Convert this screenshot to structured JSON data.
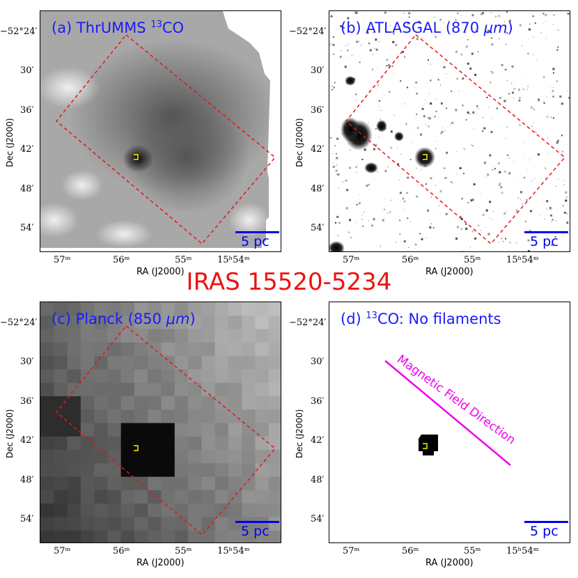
{
  "figure_title": "IRAS 15520-5234",
  "panels": [
    {
      "title": "(a) ThrUMMS",
      "title_sup": "13",
      "title_suffix": "CO",
      "scalebar": "5 pc"
    },
    {
      "title": "(b) ATLASGAL (870 ",
      "title_italic": "μm",
      "title_suffix": ")",
      "scalebar": "5 pc"
    },
    {
      "title": "(c) Planck (850 ",
      "title_italic": "μm",
      "title_suffix": ")",
      "scalebar": "5 pc"
    },
    {
      "title": "(d) ",
      "title_sup": "13",
      "title_suffix": "CO: No filaments",
      "scalebar": "5 pc"
    }
  ],
  "axes": {
    "xlabel": "RA (J2000)",
    "ylabel": "Dec (J2000)",
    "xticks": [
      "57ᵐ",
      "56ᵐ",
      "55ᵐ",
      "15ʰ54ᵐ"
    ],
    "yticks": [
      "−52°24′",
      "30′",
      "36′",
      "42′",
      "48′",
      "54′"
    ]
  },
  "annotation": {
    "magnetic_field": "Magnetic Field Direction"
  },
  "colors": {
    "title_blue": "#1a1aff",
    "scalebar_blue": "#0000ee",
    "box_red": "#ee1111",
    "magnetic_magenta": "#ee00ee",
    "marker_yellow": "#ffee00"
  }
}
